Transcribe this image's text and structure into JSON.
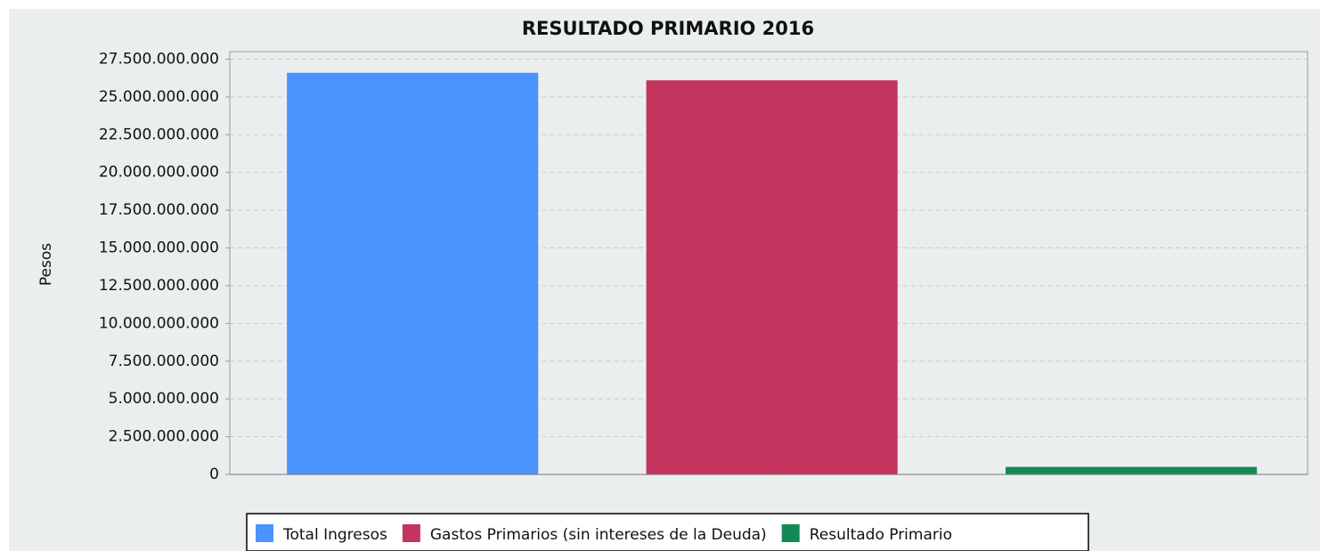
{
  "chart_data": {
    "type": "bar",
    "title": "RESULTADO PRIMARIO 2016",
    "y_label": "Pesos",
    "categories": [
      null
    ],
    "series": [
      {
        "name": "Total Ingresos",
        "color": "#4a94ff",
        "values": [
          26600000000
        ]
      },
      {
        "name": "Gastos Primarios (sin intereses de la Deuda)",
        "color": "#c3345e",
        "values": [
          26100000000
        ]
      },
      {
        "name": "Resultado Primario",
        "color": "#128a55",
        "values": [
          500000000
        ]
      }
    ],
    "ylim": [
      0,
      28000000000
    ],
    "yticks": [
      0,
      {
        "value": 2500000000,
        "label": "2.500.000.000"
      },
      {
        "value": 5000000000,
        "label": "5.000.000.000"
      },
      {
        "value": 7500000000,
        "label": "7.500.000.000"
      },
      {
        "value": 10000000000,
        "label": "10.000.000.000"
      },
      {
        "value": 12500000000,
        "label": "12.500.000.000"
      },
      {
        "value": 15000000000,
        "label": "15.000.000.000"
      },
      {
        "value": 17500000000,
        "label": "17.500.000.000"
      },
      {
        "value": 20000000000,
        "label": "20.000.000.000"
      },
      {
        "value": 22500000000,
        "label": "22.500.000.000"
      },
      {
        "value": 25000000000,
        "label": "25.000.000.000"
      },
      {
        "value": 27500000000,
        "label": "27.500.000.000"
      }
    ],
    "grid": true
  }
}
